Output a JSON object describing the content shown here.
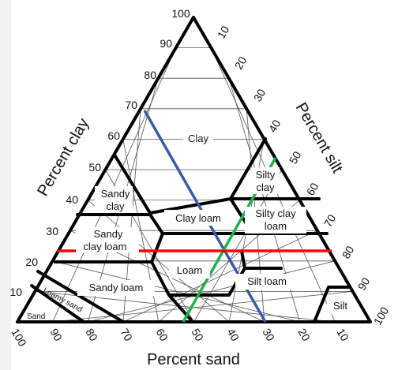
{
  "axes": {
    "clay_title": "Percent clay",
    "silt_title": "Percent silt",
    "sand_title": "Percent sand",
    "clay_ticks": [
      "10",
      "20",
      "30",
      "40",
      "50",
      "60",
      "70",
      "80",
      "90",
      "100"
    ],
    "silt_ticks": [
      "10",
      "20",
      "30",
      "40",
      "50",
      "60",
      "70",
      "80",
      "90",
      "100"
    ],
    "sand_ticks": [
      "100",
      "90",
      "80",
      "70",
      "60",
      "50",
      "40",
      "30",
      "20",
      "10"
    ]
  },
  "classes": {
    "clay": "Clay",
    "silty_clay_1": "Silty",
    "silty_clay_2": "clay",
    "sandy_clay_1": "Sandy",
    "sandy_clay_2": "clay",
    "clay_loam": "Clay loam",
    "silty_clay_loam_1": "Silty clay",
    "silty_clay_loam_2": "loam",
    "sandy_clay_loam_1": "Sandy",
    "sandy_clay_loam_2": "clay loam",
    "loam": "Loam",
    "sandy_loam": "Sandy loam",
    "silt_loam": "Silt loam",
    "silt": "Silt",
    "loamy_sand": "Loamy sand",
    "sand": "Sand"
  },
  "lines": {
    "clay_line_color": "#ff0000",
    "sand_line_color": "#3a5aa8",
    "silt_line_color": "#1db24a"
  }
}
